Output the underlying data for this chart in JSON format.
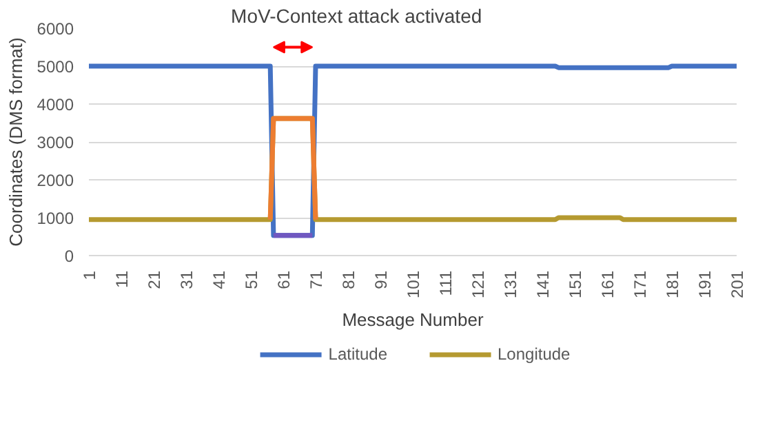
{
  "chart_data": {
    "type": "line",
    "xlabel": "Message Number",
    "ylabel": "Coordinates (DMS format)",
    "xlim": [
      1,
      201
    ],
    "xticks": [
      1,
      11,
      21,
      31,
      41,
      51,
      61,
      71,
      81,
      91,
      101,
      111,
      121,
      131,
      141,
      151,
      161,
      171,
      181,
      191,
      201
    ],
    "ylim": [
      0,
      6000
    ],
    "yticks": [
      0,
      1000,
      2000,
      3000,
      4000,
      5000,
      6000
    ],
    "grid": "y",
    "legend": "bottom",
    "line_style": "solid",
    "marker": "none",
    "annotations": [
      "MoV-Context attack activated"
    ],
    "series": [
      {
        "name": "Latitude",
        "color": "#4472c4",
        "x": [
          1,
          57,
          58,
          70,
          71,
          145,
          146,
          180,
          181,
          201
        ],
        "values": [
          5000,
          5000,
          530,
          530,
          5000,
          5000,
          4960,
          4960,
          5000,
          5000
        ]
      },
      {
        "name": "Longitude",
        "color": "#b59a30",
        "x": [
          1,
          57,
          58,
          70,
          71,
          145,
          146,
          165,
          166,
          201
        ],
        "values": [
          950,
          950,
          3620,
          3620,
          950,
          950,
          1000,
          1000,
          950,
          950
        ]
      },
      {
        "color": "#7058c0",
        "x": [
          58,
          70
        ],
        "values": [
          530,
          530
        ]
      },
      {
        "color": "#ed7d31",
        "x": [
          57,
          58,
          70,
          71
        ],
        "values": [
          950,
          3620,
          3620,
          950
        ]
      }
    ]
  }
}
